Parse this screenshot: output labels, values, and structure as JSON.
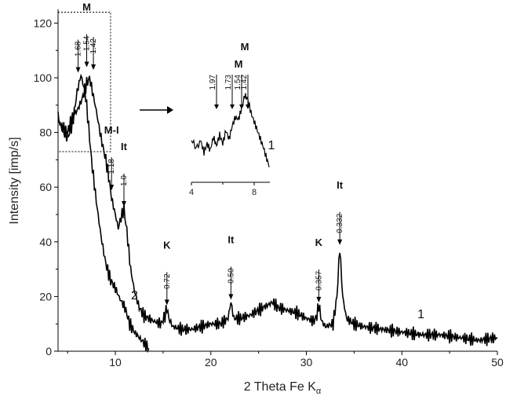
{
  "chart_data": {
    "type": "line",
    "xlabel": "2 Theta Fe K",
    "xlabel_sub": "α",
    "ylabel": "Intensity [imp/s]",
    "xlim": [
      4,
      50
    ],
    "ylim": [
      0,
      125
    ],
    "x_ticks": [
      10,
      20,
      30,
      40,
      50
    ],
    "y_ticks": [
      0,
      20,
      40,
      60,
      80,
      100,
      120
    ],
    "series": [
      {
        "name": "1",
        "color": "#000000",
        "points": [
          [
            4,
            84
          ],
          [
            5,
            80
          ],
          [
            5.5,
            86
          ],
          [
            6,
            88
          ],
          [
            6.5,
            92
          ],
          [
            7,
            98
          ],
          [
            7.3,
            100
          ],
          [
            7.6,
            95
          ],
          [
            8,
            88
          ],
          [
            8.5,
            78
          ],
          [
            9,
            70
          ],
          [
            9.3,
            64
          ],
          [
            9.6,
            56
          ],
          [
            10,
            50
          ],
          [
            10.3,
            45
          ],
          [
            10.6,
            49
          ],
          [
            10.9,
            52
          ],
          [
            11.2,
            44
          ],
          [
            11.6,
            30
          ],
          [
            12,
            22
          ],
          [
            12.5,
            16
          ],
          [
            13,
            13
          ],
          [
            14,
            11
          ],
          [
            14.8,
            10
          ],
          [
            15.2,
            13
          ],
          [
            15.4,
            16
          ],
          [
            15.6,
            12
          ],
          [
            16,
            9
          ],
          [
            17,
            8
          ],
          [
            18,
            8
          ],
          [
            19,
            9
          ],
          [
            20,
            10
          ],
          [
            21,
            10
          ],
          [
            21.8,
            12
          ],
          [
            22.1,
            18
          ],
          [
            22.4,
            12
          ],
          [
            23,
            12
          ],
          [
            24,
            13
          ],
          [
            25,
            15
          ],
          [
            26,
            17
          ],
          [
            26.5,
            18
          ],
          [
            27,
            16
          ],
          [
            28,
            15
          ],
          [
            29,
            14
          ],
          [
            30,
            12
          ],
          [
            30.8,
            11
          ],
          [
            31.1,
            13
          ],
          [
            31.3,
            17
          ],
          [
            31.6,
            11
          ],
          [
            32,
            9
          ],
          [
            32.8,
            10
          ],
          [
            33.2,
            20
          ],
          [
            33.5,
            38
          ],
          [
            33.8,
            20
          ],
          [
            34.2,
            12
          ],
          [
            35,
            10
          ],
          [
            36,
            9
          ],
          [
            38,
            8
          ],
          [
            40,
            7
          ],
          [
            42,
            6
          ],
          [
            44,
            6
          ],
          [
            46,
            5
          ],
          [
            48,
            4
          ],
          [
            50,
            5
          ]
        ]
      },
      {
        "name": "2",
        "color": "#000000",
        "points": [
          [
            4,
            86
          ],
          [
            4.5,
            80
          ],
          [
            5,
            78
          ],
          [
            5.5,
            83
          ],
          [
            5.8,
            90
          ],
          [
            6,
            95
          ],
          [
            6.4,
            101
          ],
          [
            6.8,
            95
          ],
          [
            7,
            90
          ],
          [
            7.2,
            82
          ],
          [
            7.5,
            70
          ],
          [
            8,
            55
          ],
          [
            8.5,
            42
          ],
          [
            9,
            32
          ],
          [
            9.5,
            26
          ],
          [
            10,
            23
          ],
          [
            10.5,
            19
          ],
          [
            11,
            16
          ],
          [
            11.5,
            10
          ],
          [
            12,
            7
          ],
          [
            12.5,
            5
          ],
          [
            13,
            3
          ],
          [
            13.5,
            1
          ]
        ]
      }
    ],
    "peak_annotations": [
      {
        "x": 6.1,
        "y": 101,
        "value": "1.68",
        "label": ""
      },
      {
        "x": 7.0,
        "y": 103,
        "value": "1.54",
        "label": "M"
      },
      {
        "x": 7.7,
        "y": 102,
        "value": "1.42",
        "label": ""
      },
      {
        "x": 9.6,
        "y": 58,
        "value": "1.18",
        "label": "M-I"
      },
      {
        "x": 10.9,
        "y": 52,
        "value": "1.0",
        "label": "It"
      },
      {
        "x": 15.4,
        "y": 16,
        "value": "0.72",
        "label": "K"
      },
      {
        "x": 22.1,
        "y": 18,
        "value": "0.50",
        "label": "It"
      },
      {
        "x": 31.3,
        "y": 17,
        "value": "0.357",
        "label": "K"
      },
      {
        "x": 33.5,
        "y": 38,
        "value": "0.332",
        "label": "It"
      }
    ],
    "curve_labels": [
      {
        "text": "1",
        "x": 42,
        "y": 12
      },
      {
        "text": "2",
        "x": 12,
        "y": 19
      }
    ],
    "inset": {
      "xlim": [
        4,
        9
      ],
      "x_ticks": [
        4,
        8
      ],
      "curve_label": "1",
      "points": [
        [
          4,
          76
        ],
        [
          4.3,
          72
        ],
        [
          4.6,
          75
        ],
        [
          4.8,
          70
        ],
        [
          5,
          74
        ],
        [
          5.2,
          71
        ],
        [
          5.4,
          77
        ],
        [
          5.6,
          73
        ],
        [
          5.8,
          78
        ],
        [
          6,
          74
        ],
        [
          6.2,
          80
        ],
        [
          6.4,
          76
        ],
        [
          6.6,
          82
        ],
        [
          6.8,
          86
        ],
        [
          7,
          85
        ],
        [
          7.2,
          90
        ],
        [
          7.4,
          96
        ],
        [
          7.6,
          94
        ],
        [
          7.8,
          88
        ],
        [
          8,
          84
        ],
        [
          8.2,
          80
        ],
        [
          8.4,
          76
        ],
        [
          8.6,
          72
        ],
        [
          8.8,
          67
        ],
        [
          9,
          63
        ]
      ],
      "annotations": [
        {
          "x": 5.6,
          "value": "1.97",
          "label": ""
        },
        {
          "x": 6.6,
          "value": "1.73",
          "label": ""
        },
        {
          "x": 7.2,
          "value": "1.54",
          "label": "M"
        },
        {
          "x": 7.6,
          "value": "1.42",
          "label": "M"
        }
      ]
    }
  }
}
